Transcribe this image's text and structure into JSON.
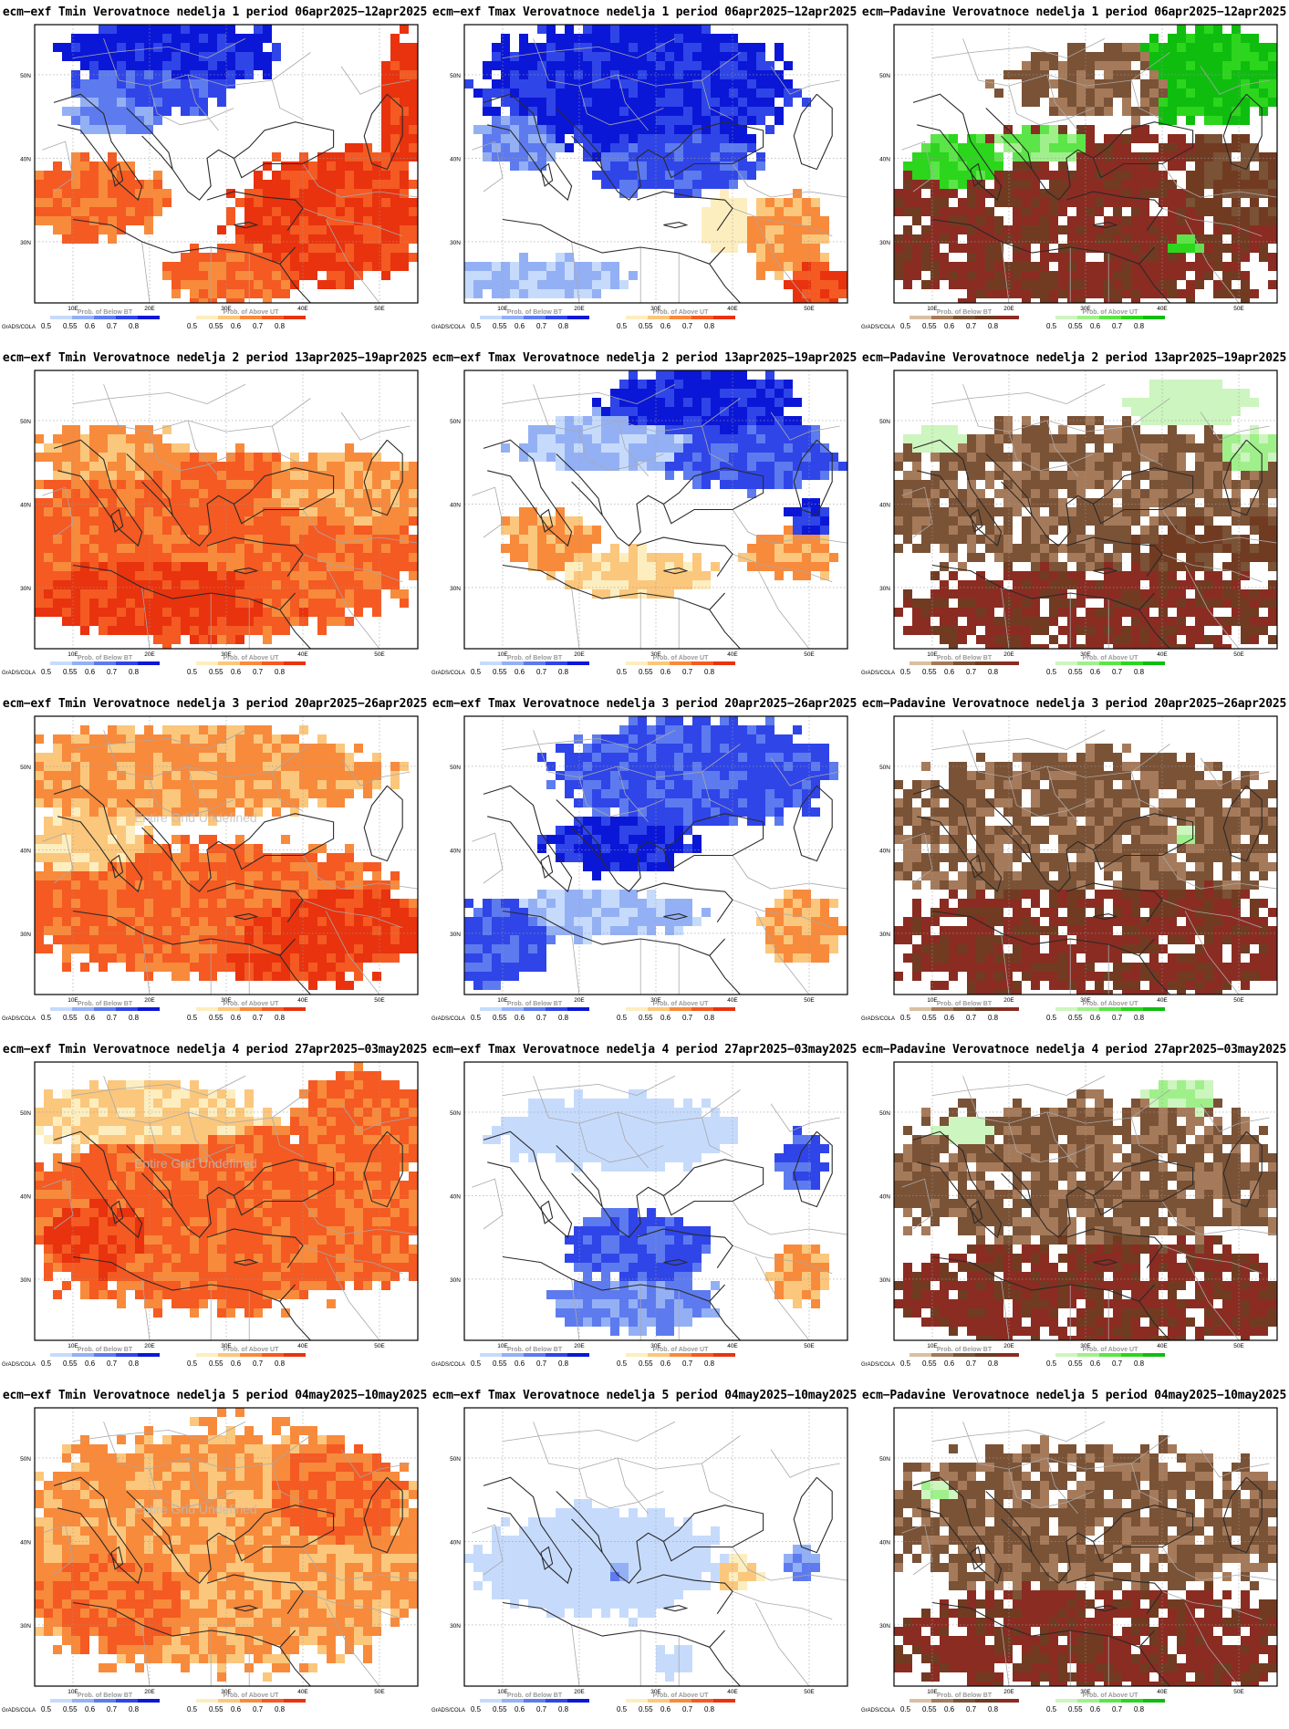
{
  "labels": {
    "lat": [
      "50N",
      "40N",
      "30N"
    ],
    "lon": [
      "10E",
      "20E",
      "30E",
      "40E",
      "50E"
    ],
    "below": "Prob. of Below BT",
    "above": "Prob. of Above UT",
    "grads": "GrADS/COLA",
    "ticks": [
      "0.5",
      "0.55",
      "0.6",
      "0.7",
      "0.8"
    ],
    "undefined": "Entire Grid Undefined"
  },
  "colors": {
    "cold": [
      "#c6dbfc",
      "#94b0f5",
      "#5d7bef",
      "#2f45e8",
      "#0b17d6"
    ],
    "warm": [
      "#fdeec0",
      "#fbc77c",
      "#f88a3c",
      "#f45a22",
      "#e8330e"
    ],
    "dry": [
      "#d8bfa3",
      "#a57a5a",
      "#7a5236",
      "#713b22",
      "#8a2c22"
    ],
    "wet": [
      "#cdf5bf",
      "#9ff08a",
      "#5ce548",
      "#2bd61c",
      "#0fbd0f"
    ]
  },
  "panels": [
    {
      "title": "ecm−exf Tmin Verovatnoce nedelja 1 period 06apr2025−12apr2025",
      "kind": "t",
      "undef": false,
      "blobs": [
        [
          "cold",
          4,
          0.36,
          0.1,
          0.26,
          0.12
        ],
        [
          "cold",
          3,
          0.3,
          0.22,
          0.18,
          0.1
        ],
        [
          "cold",
          2,
          0.22,
          0.3,
          0.12,
          0.08
        ],
        [
          "warm",
          4,
          0.78,
          0.68,
          0.25,
          0.22
        ],
        [
          "warm",
          3,
          0.15,
          0.62,
          0.17,
          0.14
        ],
        [
          "warm",
          3,
          0.52,
          0.88,
          0.18,
          0.1
        ],
        [
          "warm",
          4,
          0.96,
          0.3,
          0.05,
          0.25
        ]
      ]
    },
    {
      "title": "ecm−exf Tmax Verovatnoce nedelja 1 period 06apr2025−12apr2025",
      "kind": "t",
      "undef": false,
      "blobs": [
        [
          "cold",
          4,
          0.45,
          0.22,
          0.38,
          0.22
        ],
        [
          "cold",
          3,
          0.55,
          0.48,
          0.2,
          0.12
        ],
        [
          "cold",
          2,
          0.15,
          0.4,
          0.1,
          0.1
        ],
        [
          "cold",
          1,
          0.2,
          0.9,
          0.22,
          0.07
        ],
        [
          "warm",
          2,
          0.85,
          0.75,
          0.1,
          0.15
        ],
        [
          "warm",
          4,
          0.92,
          0.92,
          0.08,
          0.08
        ],
        [
          "warm",
          0,
          0.68,
          0.7,
          0.06,
          0.1
        ]
      ]
    },
    {
      "title": "ecm−Padavine Verovatnoce nedelja 1 period 06apr2025−12apr2025",
      "kind": "p",
      "undef": false,
      "blobs": [
        [
          "dry",
          4,
          0.5,
          0.7,
          0.55,
          0.3
        ],
        [
          "dry",
          2,
          0.6,
          0.2,
          0.3,
          0.12
        ],
        [
          "dry",
          3,
          0.85,
          0.6,
          0.2,
          0.18
        ],
        [
          "wet",
          4,
          0.82,
          0.18,
          0.22,
          0.15
        ],
        [
          "wet",
          3,
          0.18,
          0.5,
          0.14,
          0.1
        ],
        [
          "wet",
          2,
          0.4,
          0.45,
          0.14,
          0.08
        ],
        [
          "wet",
          3,
          0.75,
          0.78,
          0.1,
          0.08
        ]
      ]
    },
    {
      "title": "ecm−exf Tmin Verovatnoce nedelja 2 period 13apr2025−19apr2025",
      "kind": "t",
      "undef": false,
      "blobs": [
        [
          "warm",
          3,
          0.45,
          0.62,
          0.55,
          0.3
        ],
        [
          "warm",
          4,
          0.35,
          0.75,
          0.35,
          0.2
        ],
        [
          "warm",
          2,
          0.78,
          0.45,
          0.25,
          0.15
        ],
        [
          "warm",
          2,
          0.2,
          0.3,
          0.2,
          0.1
        ]
      ]
    },
    {
      "title": "ecm−exf Tmax Verovatnoce nedelja 2 period 13apr2025−19apr2025",
      "kind": "t",
      "undef": false,
      "blobs": [
        [
          "cold",
          4,
          0.62,
          0.12,
          0.25,
          0.12
        ],
        [
          "cold",
          3,
          0.75,
          0.3,
          0.22,
          0.12
        ],
        [
          "cold",
          1,
          0.4,
          0.25,
          0.25,
          0.1
        ],
        [
          "cold",
          4,
          0.9,
          0.52,
          0.05,
          0.07
        ],
        [
          "warm",
          2,
          0.22,
          0.6,
          0.12,
          0.1
        ],
        [
          "warm",
          1,
          0.45,
          0.72,
          0.2,
          0.08
        ],
        [
          "warm",
          2,
          0.85,
          0.65,
          0.12,
          0.08
        ]
      ]
    },
    {
      "title": "ecm−Padavine Verovatnoce nedelja 2 period 13apr2025−19apr2025",
      "kind": "p",
      "undef": false,
      "blobs": [
        [
          "dry",
          2,
          0.5,
          0.45,
          0.55,
          0.25
        ],
        [
          "dry",
          4,
          0.55,
          0.85,
          0.5,
          0.15
        ],
        [
          "dry",
          3,
          0.8,
          0.6,
          0.25,
          0.12
        ],
        [
          "wet",
          0,
          0.78,
          0.12,
          0.15,
          0.08
        ],
        [
          "wet",
          1,
          0.92,
          0.3,
          0.08,
          0.08
        ],
        [
          "wet",
          0,
          0.12,
          0.25,
          0.08,
          0.06
        ]
      ]
    },
    {
      "title": "ecm−exf Tmin Verovatnoce nedelja 3 period 20apr2025−26apr2025",
      "kind": "t",
      "undef": true,
      "blobs": [
        [
          "warm",
          3,
          0.45,
          0.68,
          0.5,
          0.22
        ],
        [
          "warm",
          4,
          0.7,
          0.75,
          0.3,
          0.18
        ],
        [
          "warm",
          2,
          0.4,
          0.2,
          0.5,
          0.15
        ],
        [
          "warm",
          1,
          0.15,
          0.45,
          0.15,
          0.12
        ]
      ]
    },
    {
      "title": "ecm−exf Tmax Verovatnoce nedelja 3 period 20apr2025−26apr2025",
      "kind": "t",
      "undef": false,
      "blobs": [
        [
          "cold",
          3,
          0.6,
          0.2,
          0.35,
          0.18
        ],
        [
          "cold",
          4,
          0.4,
          0.45,
          0.18,
          0.1
        ],
        [
          "cold",
          3,
          0.1,
          0.8,
          0.12,
          0.15
        ],
        [
          "cold",
          1,
          0.35,
          0.7,
          0.25,
          0.08
        ],
        [
          "warm",
          2,
          0.88,
          0.75,
          0.1,
          0.12
        ]
      ]
    },
    {
      "title": "ecm−Padavine Verovatnoce nedelja 3 period 20apr2025−26apr2025",
      "kind": "p",
      "undef": false,
      "blobs": [
        [
          "dry",
          2,
          0.5,
          0.4,
          0.55,
          0.25
        ],
        [
          "dry",
          4,
          0.55,
          0.8,
          0.55,
          0.2
        ],
        [
          "wet",
          0,
          0.55,
          0.38,
          0.18,
          0.08
        ],
        [
          "wet",
          1,
          0.75,
          0.42,
          0.1,
          0.06
        ]
      ]
    },
    {
      "title": "ecm−exf Tmin Verovatnoce nedelja 4 period 27apr2025−03may2025",
      "kind": "t",
      "undef": true,
      "blobs": [
        [
          "warm",
          3,
          0.5,
          0.55,
          0.55,
          0.3
        ],
        [
          "warm",
          4,
          0.2,
          0.6,
          0.18,
          0.15
        ],
        [
          "warm",
          1,
          0.3,
          0.2,
          0.3,
          0.12
        ],
        [
          "warm",
          3,
          0.85,
          0.25,
          0.18,
          0.2
        ]
      ]
    },
    {
      "title": "ecm−exf Tmax Verovatnoce nedelja 4 period 27apr2025−03may2025",
      "kind": "t",
      "undef": false,
      "blobs": [
        [
          "cold",
          3,
          0.45,
          0.65,
          0.18,
          0.12
        ],
        [
          "cold",
          2,
          0.45,
          0.85,
          0.2,
          0.1
        ],
        [
          "cold",
          3,
          0.88,
          0.35,
          0.06,
          0.1
        ],
        [
          "cold",
          0,
          0.4,
          0.25,
          0.3,
          0.12
        ],
        [
          "warm",
          2,
          0.88,
          0.75,
          0.08,
          0.1
        ]
      ]
    },
    {
      "title": "ecm−Padavine Verovatnoce nedelja 4 period 27apr2025−03may2025",
      "kind": "p",
      "undef": false,
      "blobs": [
        [
          "dry",
          2,
          0.5,
          0.4,
          0.55,
          0.25
        ],
        [
          "dry",
          4,
          0.55,
          0.82,
          0.55,
          0.18
        ],
        [
          "wet",
          0,
          0.2,
          0.25,
          0.1,
          0.06
        ],
        [
          "wet",
          1,
          0.75,
          0.12,
          0.08,
          0.06
        ]
      ]
    },
    {
      "title": "ecm−exf Tmin Verovatnoce nedelja 5 period 04may2025−10may2025",
      "kind": "t",
      "undef": true,
      "blobs": [
        [
          "warm",
          2,
          0.5,
          0.5,
          0.55,
          0.4
        ],
        [
          "warm",
          3,
          0.25,
          0.65,
          0.25,
          0.2
        ],
        [
          "warm",
          3,
          0.75,
          0.35,
          0.22,
          0.2
        ]
      ]
    },
    {
      "title": "ecm−exf Tmax Verovatnoce nedelja 5 period 04may2025−10may2025",
      "kind": "t",
      "undef": false,
      "blobs": [
        [
          "cold",
          0,
          0.35,
          0.55,
          0.3,
          0.18
        ],
        [
          "cold",
          2,
          0.4,
          0.58,
          0.05,
          0.06
        ],
        [
          "cold",
          2,
          0.88,
          0.55,
          0.04,
          0.06
        ],
        [
          "warm",
          1,
          0.72,
          0.58,
          0.06,
          0.05
        ],
        [
          "cold",
          0,
          0.55,
          0.9,
          0.06,
          0.05
        ]
      ]
    },
    {
      "title": "ecm−Padavine Verovatnoce nedelja 5 period 04may2025−10may2025",
      "kind": "p",
      "undef": false,
      "blobs": [
        [
          "dry",
          2,
          0.5,
          0.4,
          0.55,
          0.25
        ],
        [
          "dry",
          4,
          0.55,
          0.82,
          0.55,
          0.18
        ],
        [
          "wet",
          0,
          0.35,
          0.35,
          0.15,
          0.08
        ],
        [
          "wet",
          1,
          0.12,
          0.3,
          0.06,
          0.05
        ]
      ]
    }
  ]
}
